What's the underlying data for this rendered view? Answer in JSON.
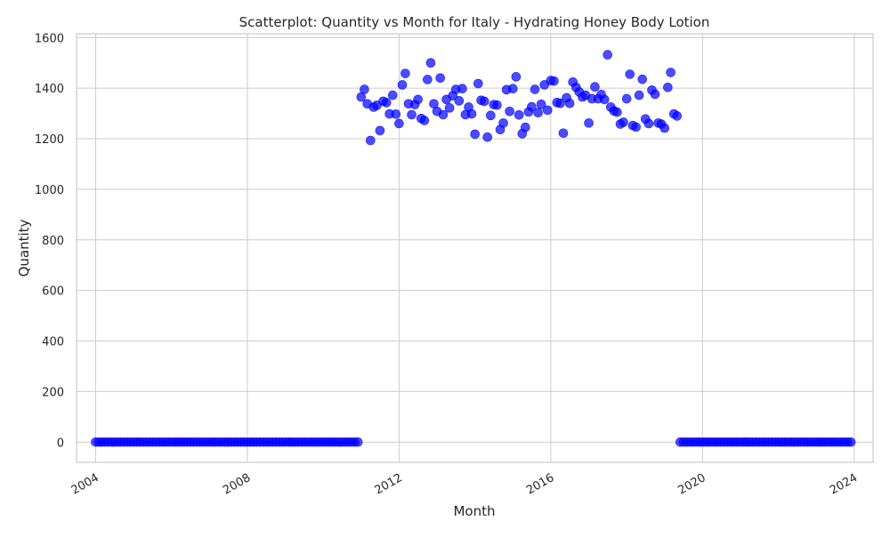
{
  "chart_data": {
    "type": "scatter",
    "title": "Scatterplot: Quantity vs Month for Italy - Hydrating Honey Body Lotion",
    "xlabel": "Month",
    "ylabel": "Quantity",
    "x_axis_type": "date",
    "xlim": [
      "2003-07-01",
      "2024-07-01"
    ],
    "ylim": [
      -80,
      1615
    ],
    "x_ticks": [
      "2004",
      "2008",
      "2012",
      "2016",
      "2020",
      "2024"
    ],
    "x_tick_dates": [
      "2004-01-01",
      "2008-01-01",
      "2012-01-01",
      "2016-01-01",
      "2020-01-01",
      "2024-01-01"
    ],
    "y_ticks": [
      0,
      200,
      400,
      600,
      800,
      1000,
      1200,
      1400,
      1600
    ],
    "grid": true,
    "legend": "none",
    "colors": {
      "point": "#0000ff",
      "grid": "#cccccc",
      "spine": "#cccccc",
      "text": "#262626"
    },
    "series": [
      {
        "zero_ranges": [
          {
            "start": "2004-01",
            "end": "2010-12",
            "value": 0
          },
          {
            "start": "2019-06",
            "end": "2023-12",
            "value": 0
          }
        ],
        "points": [
          [
            "2011-01",
            1365
          ],
          [
            "2011-02",
            1395
          ],
          [
            "2011-03",
            1338
          ],
          [
            "2011-04",
            1193
          ],
          [
            "2011-05",
            1325
          ],
          [
            "2011-06",
            1332
          ],
          [
            "2011-07",
            1232
          ],
          [
            "2011-08",
            1348
          ],
          [
            "2011-09",
            1343
          ],
          [
            "2011-10",
            1298
          ],
          [
            "2011-11",
            1372
          ],
          [
            "2011-12",
            1297
          ],
          [
            "2012-01",
            1260
          ],
          [
            "2012-02",
            1413
          ],
          [
            "2012-03",
            1458
          ],
          [
            "2012-04",
            1338
          ],
          [
            "2012-05",
            1295
          ],
          [
            "2012-06",
            1335
          ],
          [
            "2012-07",
            1355
          ],
          [
            "2012-08",
            1280
          ],
          [
            "2012-09",
            1272
          ],
          [
            "2012-10",
            1434
          ],
          [
            "2012-11",
            1500
          ],
          [
            "2012-12",
            1338
          ],
          [
            "2013-01",
            1308
          ],
          [
            "2013-02",
            1440
          ],
          [
            "2013-03",
            1295
          ],
          [
            "2013-04",
            1355
          ],
          [
            "2013-05",
            1322
          ],
          [
            "2013-06",
            1370
          ],
          [
            "2013-07",
            1395
          ],
          [
            "2013-08",
            1350
          ],
          [
            "2013-09",
            1398
          ],
          [
            "2013-10",
            1295
          ],
          [
            "2013-11",
            1325
          ],
          [
            "2013-12",
            1298
          ],
          [
            "2014-01",
            1218
          ],
          [
            "2014-02",
            1418
          ],
          [
            "2014-03",
            1352
          ],
          [
            "2014-04",
            1348
          ],
          [
            "2014-05",
            1206
          ],
          [
            "2014-06",
            1292
          ],
          [
            "2014-07",
            1335
          ],
          [
            "2014-08",
            1333
          ],
          [
            "2014-09",
            1236
          ],
          [
            "2014-10",
            1262
          ],
          [
            "2014-11",
            1394
          ],
          [
            "2014-12",
            1308
          ],
          [
            "2015-01",
            1398
          ],
          [
            "2015-02",
            1445
          ],
          [
            "2015-03",
            1294
          ],
          [
            "2015-04",
            1220
          ],
          [
            "2015-05",
            1245
          ],
          [
            "2015-06",
            1306
          ],
          [
            "2015-07",
            1326
          ],
          [
            "2015-08",
            1395
          ],
          [
            "2015-09",
            1303
          ],
          [
            "2015-10",
            1336
          ],
          [
            "2015-11",
            1413
          ],
          [
            "2015-12",
            1313
          ],
          [
            "2016-01",
            1430
          ],
          [
            "2016-02",
            1428
          ],
          [
            "2016-03",
            1343
          ],
          [
            "2016-04",
            1340
          ],
          [
            "2016-05",
            1222
          ],
          [
            "2016-06",
            1362
          ],
          [
            "2016-07",
            1340
          ],
          [
            "2016-08",
            1424
          ],
          [
            "2016-09",
            1403
          ],
          [
            "2016-10",
            1385
          ],
          [
            "2016-11",
            1365
          ],
          [
            "2016-12",
            1372
          ],
          [
            "2017-01",
            1262
          ],
          [
            "2017-02",
            1358
          ],
          [
            "2017-03",
            1405
          ],
          [
            "2017-04",
            1358
          ],
          [
            "2017-05",
            1375
          ],
          [
            "2017-06",
            1355
          ],
          [
            "2017-07",
            1532
          ],
          [
            "2017-08",
            1325
          ],
          [
            "2017-09",
            1310
          ],
          [
            "2017-10",
            1305
          ],
          [
            "2017-11",
            1258
          ],
          [
            "2017-12",
            1265
          ],
          [
            "2018-01",
            1358
          ],
          [
            "2018-02",
            1455
          ],
          [
            "2018-03",
            1252
          ],
          [
            "2018-04",
            1246
          ],
          [
            "2018-05",
            1372
          ],
          [
            "2018-06",
            1435
          ],
          [
            "2018-07",
            1278
          ],
          [
            "2018-08",
            1260
          ],
          [
            "2018-09",
            1392
          ],
          [
            "2018-10",
            1376
          ],
          [
            "2018-11",
            1262
          ],
          [
            "2018-12",
            1258
          ],
          [
            "2019-01",
            1242
          ],
          [
            "2019-02",
            1403
          ],
          [
            "2019-03",
            1462
          ],
          [
            "2019-04",
            1298
          ],
          [
            "2019-05",
            1290
          ]
        ]
      }
    ]
  }
}
